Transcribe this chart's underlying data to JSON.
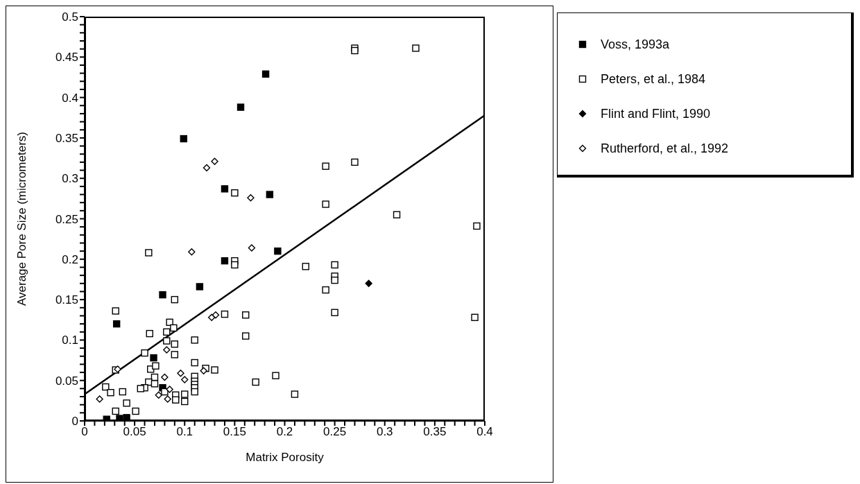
{
  "chart_data": {
    "type": "scatter",
    "xlabel": "Matrix Porosity",
    "ylabel": "Average Pore Size (micrometers)",
    "xlim": [
      0,
      0.4
    ],
    "ylim": [
      0,
      0.5
    ],
    "xticks": [
      0,
      {
        "value": 0.01,
        "label": null
      },
      {
        "value": 0.02,
        "label": null
      },
      {
        "value": 0.03,
        "label": null
      },
      {
        "value": 0.04,
        "label": null
      },
      0.05,
      {
        "value": 0.06,
        "label": null
      },
      {
        "value": 0.07,
        "label": null
      },
      {
        "value": 0.08,
        "label": null
      },
      {
        "value": 0.09,
        "label": null
      },
      0.1,
      {
        "value": 0.11,
        "label": null
      },
      {
        "value": 0.12,
        "label": null
      },
      {
        "value": 0.13,
        "label": null
      },
      {
        "value": 0.14,
        "label": null
      },
      0.15,
      {
        "value": 0.16,
        "label": null
      },
      {
        "value": 0.17,
        "label": null
      },
      {
        "value": 0.18,
        "label": null
      },
      {
        "value": 0.19,
        "label": null
      },
      0.2,
      {
        "value": 0.21,
        "label": null
      },
      {
        "value": 0.22,
        "label": null
      },
      {
        "value": 0.23,
        "label": null
      },
      {
        "value": 0.24,
        "label": null
      },
      0.25,
      {
        "value": 0.26,
        "label": null
      },
      {
        "value": 0.27,
        "label": null
      },
      {
        "value": 0.28,
        "label": null
      },
      {
        "value": 0.29,
        "label": null
      },
      0.3,
      {
        "value": 0.31,
        "label": null
      },
      {
        "value": 0.32,
        "label": null
      },
      {
        "value": 0.33,
        "label": null
      },
      {
        "value": 0.34,
        "label": null
      },
      0.35,
      {
        "value": 0.36,
        "label": null
      },
      {
        "value": 0.37,
        "label": null
      },
      {
        "value": 0.38,
        "label": null
      },
      {
        "value": 0.39,
        "label": null
      },
      0.4
    ],
    "yticks": [
      0,
      {
        "value": 0.01,
        "label": null
      },
      {
        "value": 0.02,
        "label": null
      },
      {
        "value": 0.03,
        "label": null
      },
      {
        "value": 0.04,
        "label": null
      },
      0.05,
      {
        "value": 0.06,
        "label": null
      },
      {
        "value": 0.07,
        "label": null
      },
      {
        "value": 0.08,
        "label": null
      },
      {
        "value": 0.09,
        "label": null
      },
      0.1,
      {
        "value": 0.11,
        "label": null
      },
      {
        "value": 0.12,
        "label": null
      },
      {
        "value": 0.13,
        "label": null
      },
      {
        "value": 0.14,
        "label": null
      },
      0.15,
      {
        "value": 0.16,
        "label": null
      },
      {
        "value": 0.17,
        "label": null
      },
      {
        "value": 0.18,
        "label": null
      },
      {
        "value": 0.19,
        "label": null
      },
      0.2,
      {
        "value": 0.21,
        "label": null
      },
      {
        "value": 0.22,
        "label": null
      },
      {
        "value": 0.23,
        "label": null
      },
      {
        "value": 0.24,
        "label": null
      },
      0.25,
      {
        "value": 0.26,
        "label": null
      },
      {
        "value": 0.27,
        "label": null
      },
      {
        "value": 0.28,
        "label": null
      },
      {
        "value": 0.29,
        "label": null
      },
      0.3,
      {
        "value": 0.31,
        "label": null
      },
      {
        "value": 0.32,
        "label": null
      },
      {
        "value": 0.33,
        "label": null
      },
      {
        "value": 0.34,
        "label": null
      },
      0.35,
      {
        "value": 0.36,
        "label": null
      },
      {
        "value": 0.37,
        "label": null
      },
      {
        "value": 0.38,
        "label": null
      },
      {
        "value": 0.39,
        "label": null
      },
      0.4,
      {
        "value": 0.41,
        "label": null
      },
      {
        "value": 0.42,
        "label": null
      },
      {
        "value": 0.43,
        "label": null
      },
      {
        "value": 0.44,
        "label": null
      },
      0.45,
      {
        "value": 0.46,
        "label": null
      },
      {
        "value": 0.47,
        "label": null
      },
      {
        "value": 0.48,
        "label": null
      },
      {
        "value": 0.49,
        "label": null
      },
      0.5
    ],
    "grid": false,
    "legend": "top right",
    "series": [
      {
        "name": "Voss, 1993a",
        "marker": "square",
        "color": "#000000",
        "x": [
          0.181,
          0.156,
          0.099,
          0.14,
          0.185,
          0.14,
          0.193,
          0.115,
          0.078,
          0.032,
          0.069,
          0.078,
          0.022,
          0.035,
          0.042
        ],
        "values": [
          0.429,
          0.388,
          0.349,
          0.287,
          0.28,
          0.198,
          0.21,
          0.166,
          0.156,
          0.12,
          0.078,
          0.041,
          0.002,
          0.003,
          0.004
        ]
      },
      {
        "name": "Peters, et al., 1984",
        "marker": "square",
        "color": "#ffffff",
        "x": [
          0.27,
          0.27,
          0.331,
          0.27,
          0.241,
          0.241,
          0.312,
          0.392,
          0.221,
          0.25,
          0.25,
          0.25,
          0.241,
          0.25,
          0.39,
          0.21,
          0.191,
          0.171,
          0.15,
          0.064,
          0.15,
          0.15,
          0.09,
          0.031,
          0.14,
          0.161,
          0.161,
          0.085,
          0.089,
          0.082,
          0.065,
          0.082,
          0.09,
          0.11,
          0.06,
          0.09,
          0.11,
          0.031,
          0.066,
          0.071,
          0.121,
          0.13,
          0.11,
          0.11,
          0.11,
          0.11,
          0.11,
          0.07,
          0.064,
          0.07,
          0.06,
          0.056,
          0.021,
          0.026,
          0.038,
          0.08,
          0.091,
          0.091,
          0.1,
          0.1,
          0.042,
          0.031,
          0.051
        ],
        "values": [
          0.461,
          0.458,
          0.461,
          0.32,
          0.315,
          0.268,
          0.255,
          0.241,
          0.191,
          0.193,
          0.179,
          0.174,
          0.162,
          0.134,
          0.128,
          0.033,
          0.056,
          0.048,
          0.282,
          0.208,
          0.198,
          0.193,
          0.15,
          0.136,
          0.132,
          0.131,
          0.105,
          0.122,
          0.115,
          0.11,
          0.108,
          0.099,
          0.095,
          0.1,
          0.084,
          0.082,
          0.072,
          0.063,
          0.064,
          0.068,
          0.065,
          0.063,
          0.055,
          0.049,
          0.045,
          0.041,
          0.036,
          0.054,
          0.048,
          0.046,
          0.041,
          0.04,
          0.042,
          0.035,
          0.036,
          0.036,
          0.032,
          0.026,
          0.033,
          0.024,
          0.022,
          0.012,
          0.012
        ]
      },
      {
        "name": "Flint and Flint, 1990",
        "marker": "diamond",
        "color": "#000000",
        "x": [
          0.284
        ],
        "values": [
          0.17
        ]
      },
      {
        "name": "Rutherford, et al., 1992",
        "marker": "diamond",
        "color": "#ffffff",
        "x": [
          0.122,
          0.13,
          0.166,
          0.107,
          0.167,
          0.127,
          0.131,
          0.033,
          0.015,
          0.082,
          0.08,
          0.096,
          0.1,
          0.119,
          0.085,
          0.074,
          0.083
        ],
        "values": [
          0.313,
          0.321,
          0.276,
          0.209,
          0.214,
          0.128,
          0.131,
          0.064,
          0.027,
          0.088,
          0.054,
          0.059,
          0.051,
          0.062,
          0.039,
          0.032,
          0.027
        ]
      },
      {
        "type": "line",
        "color": "#000000",
        "marker": "none",
        "line_style": "solid",
        "x": [
          0,
          0.4
        ],
        "values": [
          0.033,
          0.378
        ]
      }
    ]
  }
}
